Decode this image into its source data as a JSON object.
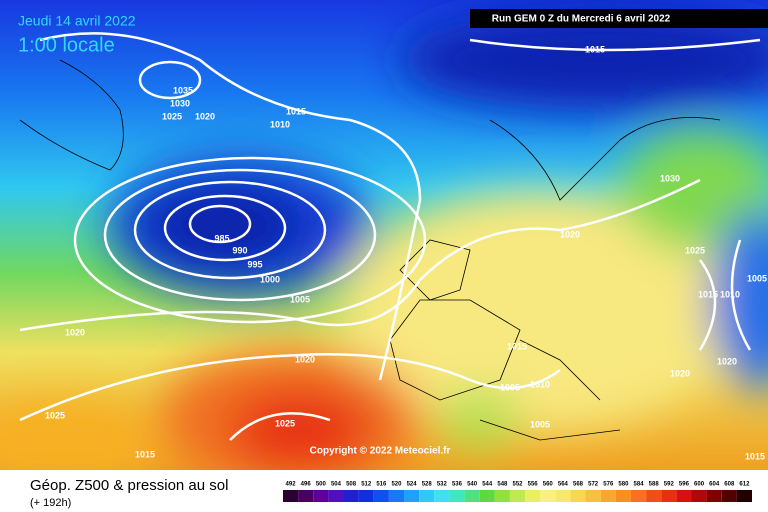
{
  "header": {
    "valid_date": "Jeudi 14 avril 2022",
    "valid_time": "1:00 locale",
    "run": "Run GEM 0 Z du Mercredi 6 avril 2022"
  },
  "map": {
    "copyright": "Copyright © 2022 Meteociel.fr",
    "isobar_labels": [
      1015,
      1035,
      1030,
      1025,
      1020,
      1015,
      1010,
      985,
      990,
      995,
      1000,
      1005,
      1020,
      1020,
      1025,
      1025,
      1015,
      1020,
      1030,
      1025,
      1015,
      1010,
      1005,
      1020,
      1020,
      1015,
      1005,
      1010,
      1005,
      1015
    ]
  },
  "footer": {
    "title": "Géop. Z500 & pression au sol",
    "lead": "(+ 192h)",
    "colorbar": {
      "labels": [
        492,
        496,
        500,
        504,
        508,
        512,
        516,
        520,
        524,
        528,
        532,
        536,
        540,
        544,
        548,
        552,
        556,
        560,
        564,
        568,
        572,
        576,
        580,
        584,
        588,
        592,
        596,
        600,
        604,
        608,
        612
      ],
      "colors": [
        "#2a0030",
        "#4a0060",
        "#60009a",
        "#5010c0",
        "#2020d0",
        "#1030e0",
        "#1050f0",
        "#1878f8",
        "#20a0f8",
        "#30c8f8",
        "#40e0f0",
        "#40e8c0",
        "#50e080",
        "#60d840",
        "#90e040",
        "#c0e850",
        "#e8f060",
        "#f8f080",
        "#f8e870",
        "#f8d850",
        "#f8c040",
        "#f8a830",
        "#f89020",
        "#f87020",
        "#f05018",
        "#e83010",
        "#d81010",
        "#b00808",
        "#800000",
        "#500000",
        "#200000"
      ]
    }
  }
}
